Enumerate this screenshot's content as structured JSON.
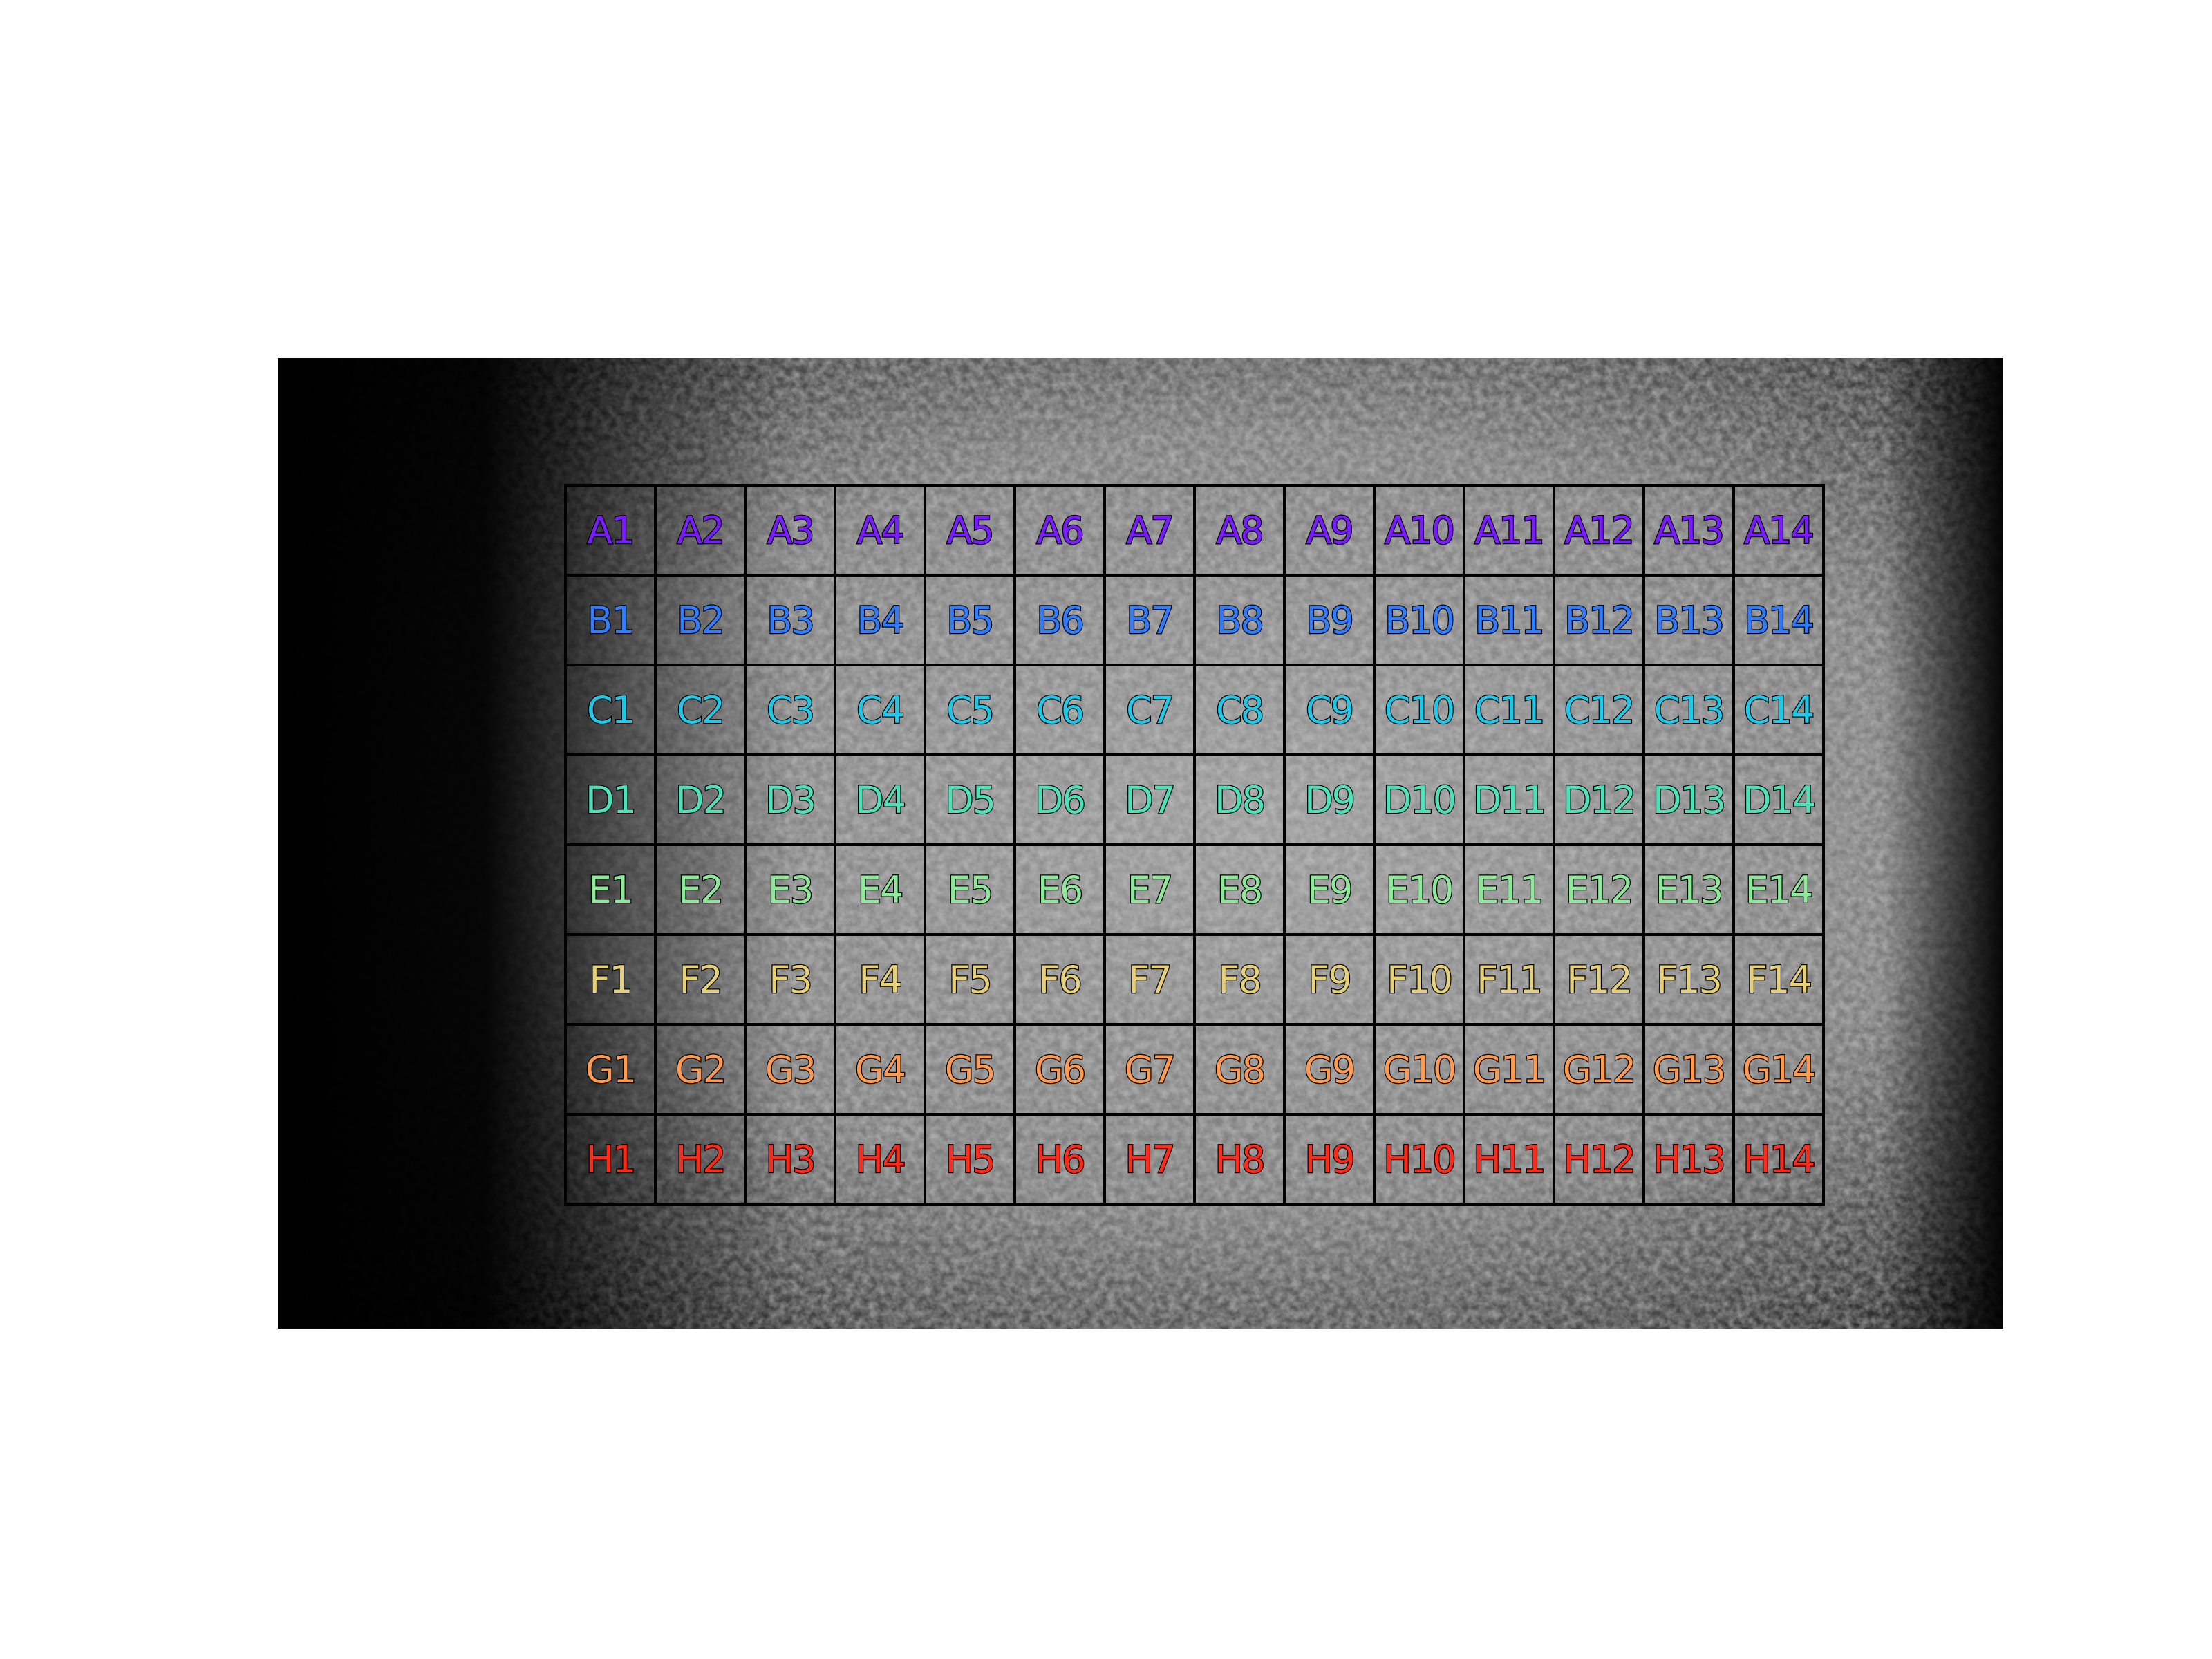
{
  "rows": [
    "A",
    "B",
    "C",
    "D",
    "E",
    "F",
    "G",
    "H"
  ],
  "columns": 14,
  "row_colors": {
    "A": "#7a1cff",
    "B": "#2f7cff",
    "C": "#1ec8e8",
    "D": "#4ee0b8",
    "E": "#8ee89a",
    "F": "#e6d07a",
    "G": "#ff9a52",
    "H": "#ff2a1a"
  },
  "cells": [
    [
      "A1",
      "A2",
      "A3",
      "A4",
      "A5",
      "A6",
      "A7",
      "A8",
      "A9",
      "A10",
      "A11",
      "A12",
      "A13",
      "A14"
    ],
    [
      "B1",
      "B2",
      "B3",
      "B4",
      "B5",
      "B6",
      "B7",
      "B8",
      "B9",
      "B10",
      "B11",
      "B12",
      "B13",
      "B14"
    ],
    [
      "C1",
      "C2",
      "C3",
      "C4",
      "C5",
      "C6",
      "C7",
      "C8",
      "C9",
      "C10",
      "C11",
      "C12",
      "C13",
      "C14"
    ],
    [
      "D1",
      "D2",
      "D3",
      "D4",
      "D5",
      "D6",
      "D7",
      "D8",
      "D9",
      "D10",
      "D11",
      "D12",
      "D13",
      "D14"
    ],
    [
      "E1",
      "E2",
      "E3",
      "E4",
      "E5",
      "E6",
      "E7",
      "E8",
      "E9",
      "E10",
      "E11",
      "E12",
      "E13",
      "E14"
    ],
    [
      "F1",
      "F2",
      "F3",
      "F4",
      "F5",
      "F6",
      "F7",
      "F8",
      "F9",
      "F10",
      "F11",
      "F12",
      "F13",
      "F14"
    ],
    [
      "G1",
      "G2",
      "G3",
      "G4",
      "G5",
      "G6",
      "G7",
      "G8",
      "G9",
      "G10",
      "G11",
      "G12",
      "G13",
      "G14"
    ],
    [
      "H1",
      "H2",
      "H3",
      "H4",
      "H5",
      "H6",
      "H7",
      "H8",
      "H9",
      "H10",
      "H11",
      "H12",
      "H13",
      "H14"
    ]
  ]
}
